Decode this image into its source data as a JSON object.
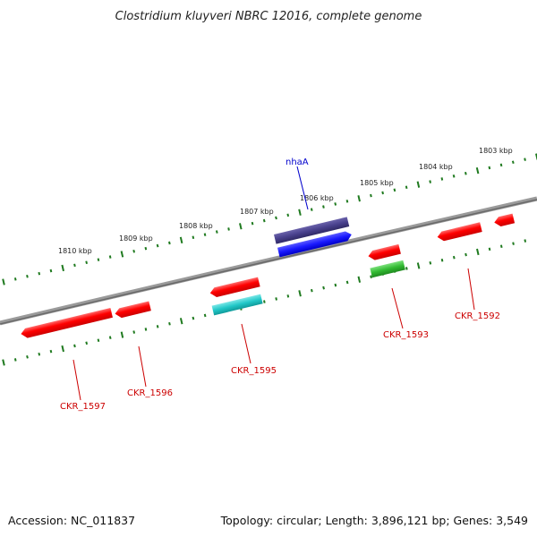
{
  "title": "Clostridium kluyveri NBRC 12016, complete genome",
  "scale_labels": [
    "1810 kbp",
    "1809 kbp",
    "1808 kbp",
    "1807 kbp",
    "1806 kbp",
    "1805 kbp",
    "1804 kbp",
    "1803 kbp"
  ],
  "gene_labels": [
    "nhaA",
    "CKR_1597",
    "CKR_1596",
    "CKR_1595",
    "CKR_1593",
    "CKR_1592"
  ],
  "footer": {
    "accession": "Accession: NC_011837",
    "topology": "Topology: circular; Length: 3,896,121 bp; Genes: 3,549"
  },
  "colors": {
    "backbone": "#808080",
    "ticks": "#1f7a1f",
    "gene_red": "#ff0000",
    "gene_blue": "#1a1aff",
    "gene_darkblue": "#48408c",
    "gene_cyan": "#22c8c8",
    "gene_green": "#33bb33",
    "label_red": "#cc0000",
    "label_blue": "#0000cc"
  }
}
